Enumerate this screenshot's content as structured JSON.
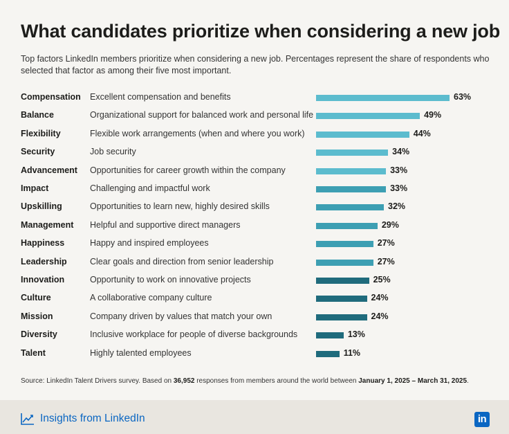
{
  "colors": {
    "accent": "#0a66c2",
    "bar_light": "#5cbcce",
    "bar_mid": "#3d9fb3",
    "bar_dark": "#1f6b7c"
  },
  "chart_data": {
    "type": "bar",
    "orientation": "horizontal",
    "title": "What candidates prioritize when considering a new job",
    "subtitle": "Top factors LinkedIn members prioritize when considering a new job. Percentages represent the share of respondents who selected that factor as among their five most important.",
    "categories": [
      "Compensation",
      "Balance",
      "Flexibility",
      "Security",
      "Advancement",
      "Impact",
      "Upskilling",
      "Management",
      "Happiness",
      "Leadership",
      "Innovation",
      "Culture",
      "Mission",
      "Diversity",
      "Talent"
    ],
    "descriptions": [
      "Excellent compensation and benefits",
      "Organizational support for balanced work and personal life",
      "Flexible work arrangements (when and where you work)",
      "Job security",
      "Opportunities for career growth within the company",
      "Challenging and impactful work",
      "Opportunities to learn new, highly desired skills",
      "Helpful and supportive direct managers",
      "Happy and inspired employees",
      "Clear goals and direction from senior leadership",
      "Opportunity to work on innovative projects",
      "A collaborative company culture",
      "Company driven by values that match your own",
      "Inclusive workplace for people of diverse backgrounds",
      "Highly talented employees"
    ],
    "values": [
      63,
      49,
      44,
      34,
      33,
      33,
      32,
      29,
      27,
      27,
      25,
      24,
      24,
      13,
      11
    ],
    "value_labels": [
      "63%",
      "49%",
      "44%",
      "34%",
      "33%",
      "33%",
      "32%",
      "29%",
      "27%",
      "27%",
      "25%",
      "24%",
      "24%",
      "13%",
      "11%"
    ],
    "bar_shades": [
      "light",
      "light",
      "light",
      "light",
      "light",
      "mid",
      "mid",
      "mid",
      "mid",
      "mid",
      "dark",
      "dark",
      "dark",
      "dark",
      "dark"
    ],
    "unit": "%",
    "xlim": [
      0,
      63
    ]
  },
  "source": {
    "prefix": "Source: LinkedIn Talent Drivers survey. Based on ",
    "count": "36,952",
    "middle": " responses from members around the world between ",
    "range": "January 1, 2025 – March 31, 2025",
    "suffix": "."
  },
  "footer": {
    "brand_icon": "trend-chart-icon",
    "brand_text": "Insights from LinkedIn",
    "logo_text": "in"
  }
}
